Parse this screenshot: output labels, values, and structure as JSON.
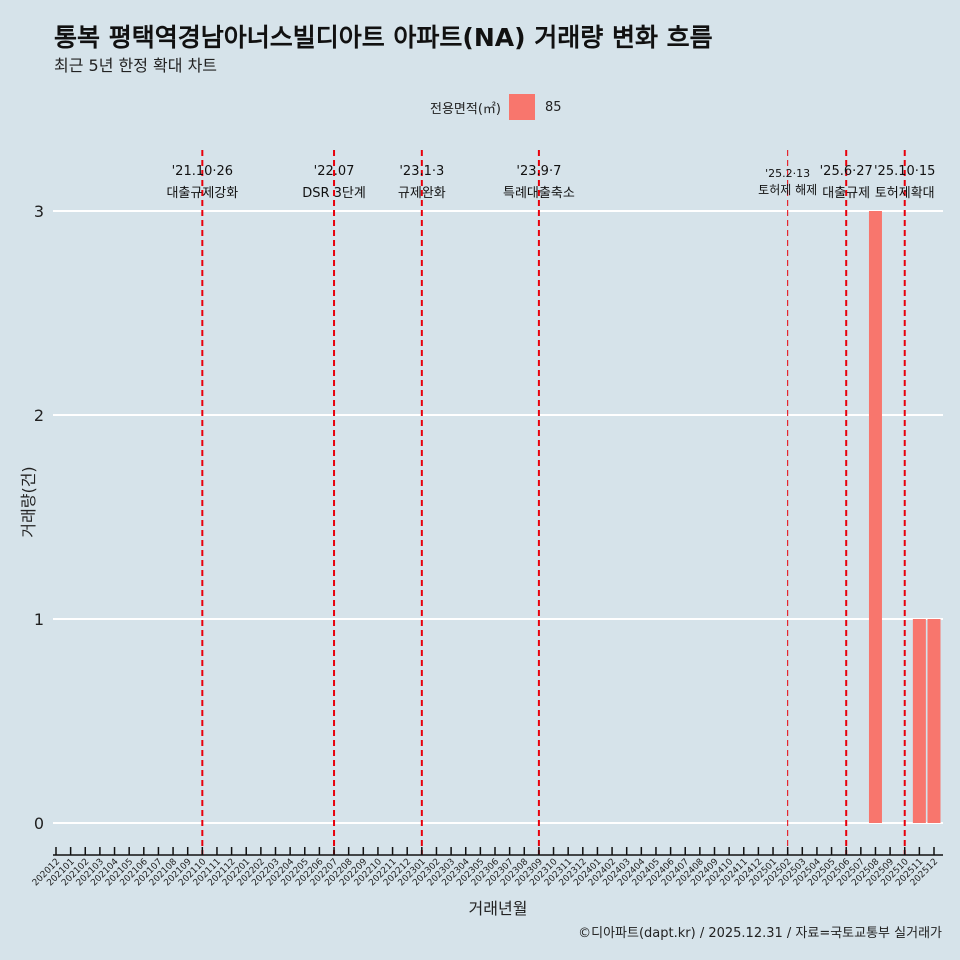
{
  "header": {
    "title": "통복 평택역경남아너스빌디아트 아파트(NA) 거래량 변화 흐름",
    "subtitle": "최근 5년 한정 확대 차트"
  },
  "legend": {
    "title": "전용면적(㎡)",
    "items": [
      {
        "label": "85",
        "color": "#f8766d"
      }
    ]
  },
  "caption": "©디아파트(dapt.kr) / 2025.12.31 / 자료=국토교통부 실거래가",
  "chart_data": {
    "type": "bar",
    "xlabel": "거래년월",
    "ylabel": "거래량(건)",
    "ylim": [
      -0.15,
      3.3
    ],
    "yticks": [
      0,
      1,
      2,
      3
    ],
    "categories": [
      "202012",
      "202101",
      "202102",
      "202103",
      "202104",
      "202105",
      "202106",
      "202107",
      "202108",
      "202109",
      "202110",
      "202111",
      "202112",
      "202201",
      "202202",
      "202203",
      "202204",
      "202205",
      "202206",
      "202207",
      "202208",
      "202209",
      "202210",
      "202211",
      "202212",
      "202301",
      "202302",
      "202303",
      "202304",
      "202305",
      "202306",
      "202307",
      "202308",
      "202309",
      "202310",
      "202311",
      "202312",
      "202401",
      "202402",
      "202403",
      "202404",
      "202405",
      "202406",
      "202407",
      "202408",
      "202409",
      "202410",
      "202411",
      "202412",
      "202501",
      "202502",
      "202503",
      "202504",
      "202505",
      "202506",
      "202507",
      "202508",
      "202509",
      "202510",
      "202511",
      "202512"
    ],
    "series": [
      {
        "name": "85",
        "color": "#f8766d",
        "points": [
          {
            "x": "202508",
            "y": 3
          },
          {
            "x": "202511",
            "y": 1
          },
          {
            "x": "202512",
            "y": 1
          }
        ]
      }
    ],
    "annotations": [
      {
        "x": "202110",
        "date": "'21.10·26",
        "label": "대출규제강화",
        "minor": false
      },
      {
        "x": "202207",
        "date": "'22.07",
        "label": "DSR 3단계",
        "minor": false
      },
      {
        "x": "202301",
        "date": "'23.1·3",
        "label": "규제완화",
        "minor": false
      },
      {
        "x": "202309",
        "date": "'23.9·7",
        "label": "특례대출축소",
        "minor": false
      },
      {
        "x": "202502",
        "date": "'25.2·13",
        "label": "토허제 해제",
        "minor": true
      },
      {
        "x": "202506",
        "date": "'25.6·27",
        "label": "대출규제",
        "minor": false
      },
      {
        "x": "202510",
        "date": "'25.10·15",
        "label": "토허제확대",
        "minor": false
      }
    ]
  }
}
